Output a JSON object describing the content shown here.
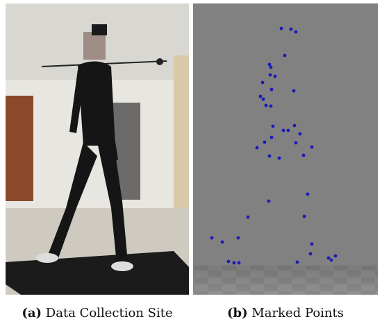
{
  "panels": [
    {
      "label": "(a)",
      "caption": "Data Collection Site"
    },
    {
      "label": "(b)",
      "caption": "Marked Points"
    }
  ]
}
